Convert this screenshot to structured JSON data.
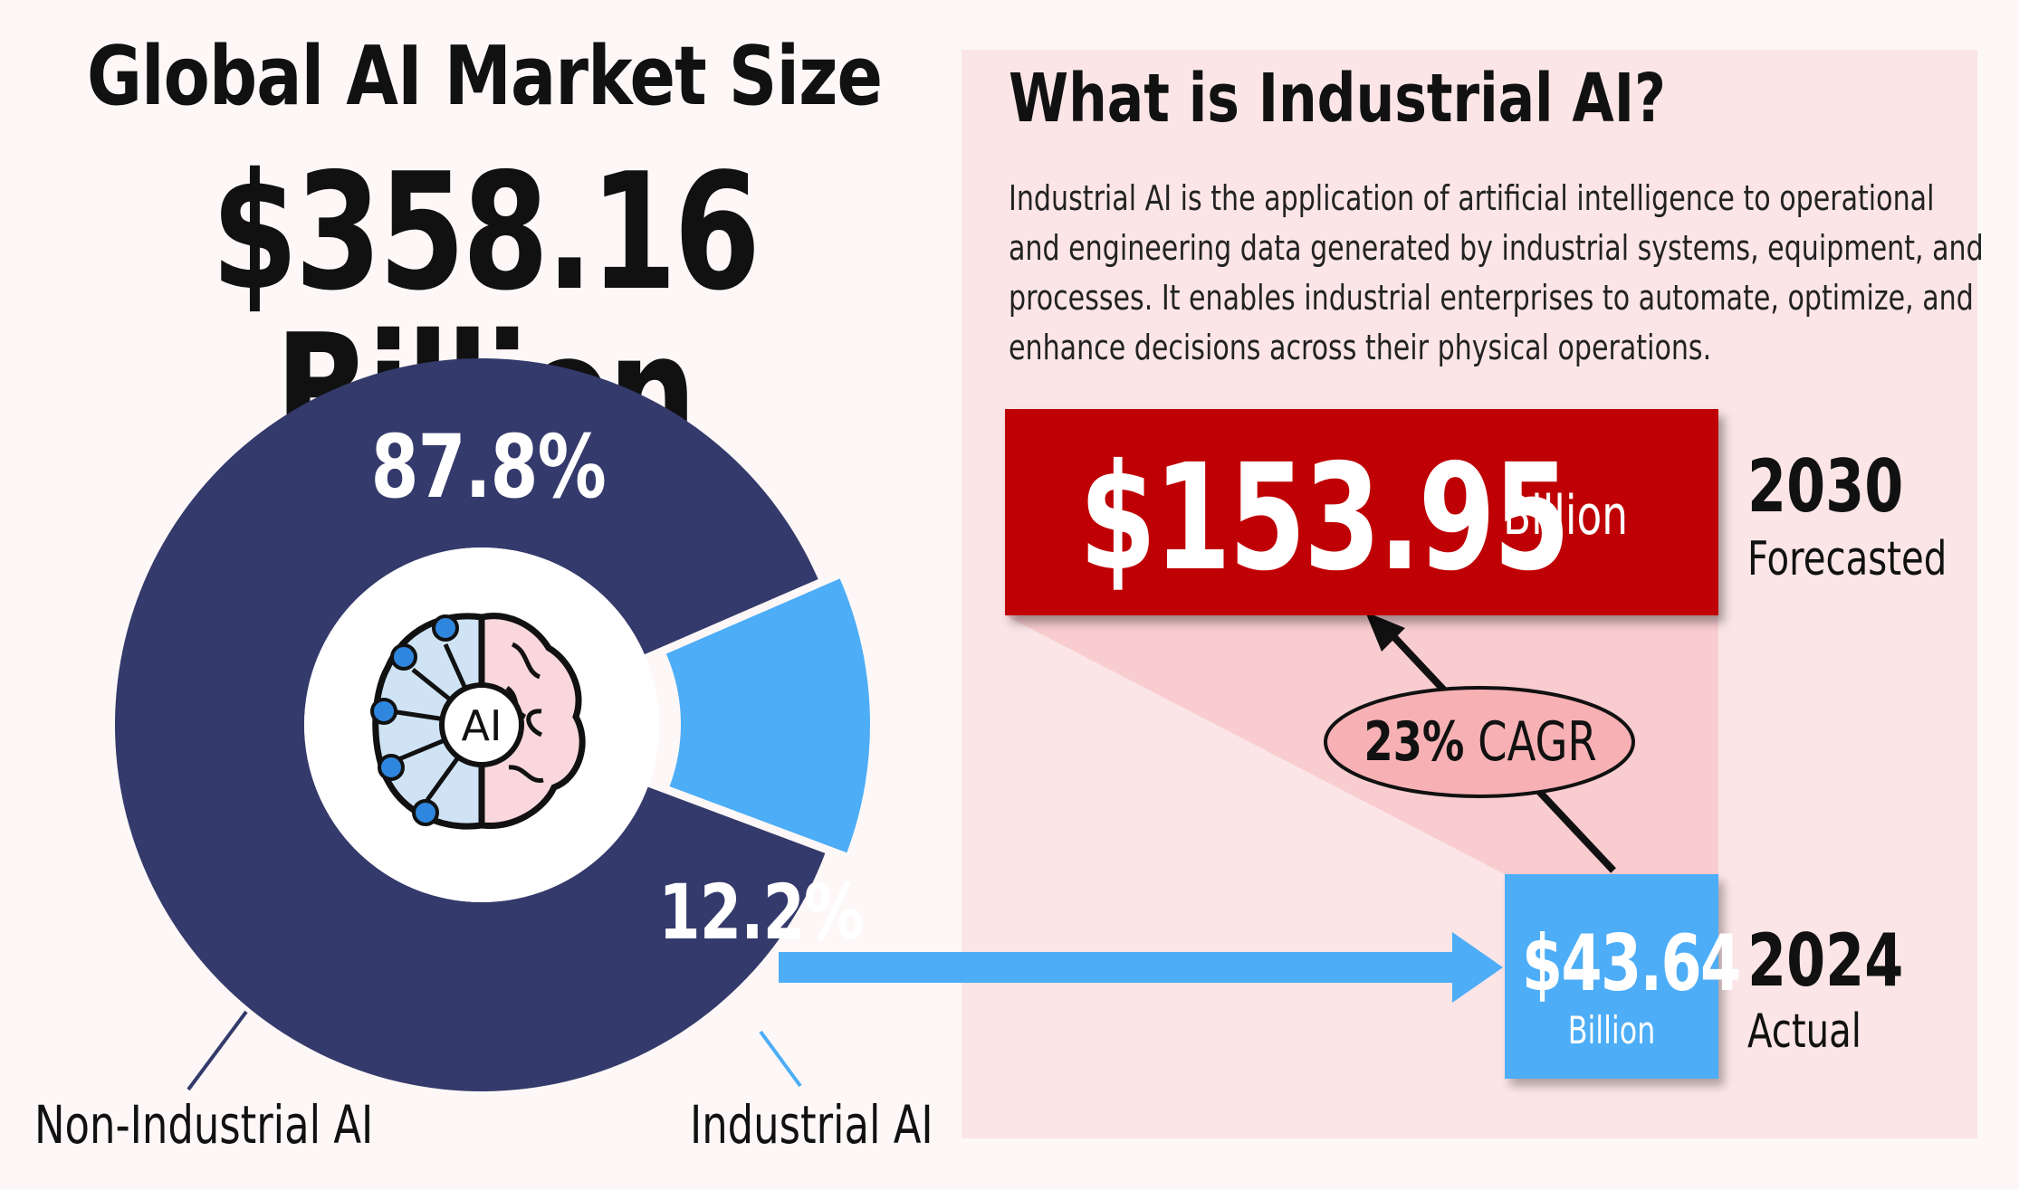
{
  "header": {
    "title": "Global AI Market Size",
    "total_value": "$358.16 Billion"
  },
  "chart_data": [
    {
      "type": "pie",
      "categories": [
        "Non-Industrial AI",
        "Industrial AI"
      ],
      "values": [
        87.8,
        12.2
      ],
      "value_labels": [
        "87.8%",
        "12.2%"
      ],
      "colors": [
        "#343a6b",
        "#4dadf7"
      ],
      "center_icon": "ai-brain-icon",
      "center_icon_text": "AI"
    },
    {
      "type": "bar",
      "categories": [
        "2024",
        "2030"
      ],
      "values": [
        43.64,
        153.95
      ],
      "unit": "Billion",
      "value_labels": [
        "$43.64",
        "$153.95"
      ],
      "status_labels": [
        "Actual",
        "Forecasted"
      ],
      "annotation": {
        "value": "23%",
        "label": "CAGR"
      },
      "colors": [
        "#4dadf7",
        "#bf0004"
      ]
    }
  ],
  "info": {
    "title": "What is Industrial AI?",
    "text_lines": [
      "Industrial AI is the application of artificial intelligence to operational",
      "and engineering data generated by industrial systems, equipment, and",
      "processes. It enables industrial enterprises to automate, optimize, and",
      "enhance decisions across their physical operations."
    ]
  },
  "colors": {
    "background": "#fdf8f7",
    "panel": "#fbe5e6",
    "wedge": "#f9cdd0",
    "cagr_ellipse": "#f7b1b4"
  }
}
